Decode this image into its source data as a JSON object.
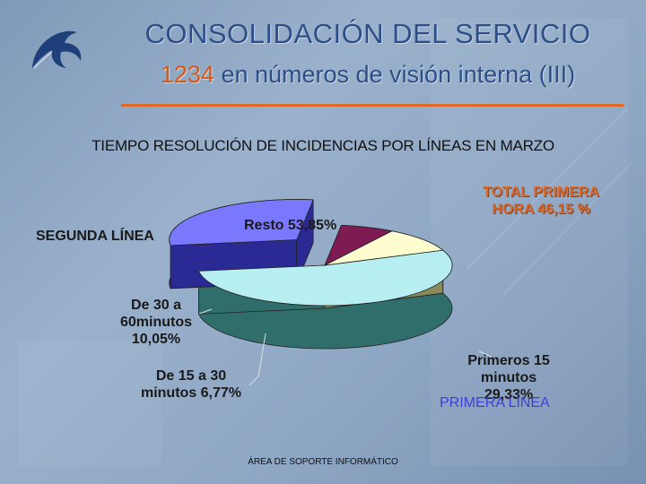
{
  "header": {
    "title": "CONSOLIDACIÓN DEL SERVICIO",
    "subtitle_number": "1234",
    "subtitle_text": " en números de visión interna (III)"
  },
  "chart_title": "TIEMPO RESOLUCIÓN DE INCIDENCIAS POR LÍNEAS EN MARZO",
  "chart_data": {
    "type": "pie",
    "title": "TIEMPO RESOLUCIÓN DE INCIDENCIAS POR LÍNEAS EN MARZO",
    "slices": [
      {
        "name": "Resto",
        "value": 53.85,
        "label": "Resto 53,85%",
        "color": "#b7eef2",
        "side": "#2f6e6a"
      },
      {
        "name": "Primeros 15 minutos",
        "value": 29.33,
        "label": "Primeros 15 minutos 29,33%",
        "color": "#7a78ff",
        "side": "#2b2a94",
        "exploded": true
      },
      {
        "name": "De 15 a 30 minutos",
        "value": 6.77,
        "label": "De 15 a 30 minutos 6,77%",
        "color": "#7d1b52",
        "side": "#3a0a26"
      },
      {
        "name": "De 30 a 60minutos",
        "value": 10.05,
        "label": "De 30 a 60minutos 10,05%",
        "color": "#fdfdd0",
        "side": "#8b8a5c"
      }
    ]
  },
  "labels": {
    "resto": "Resto 53,85%",
    "primeros": [
      "Primeros 15",
      "minutos 29,33%"
    ],
    "de15": [
      "De 15 a 30",
      "minutos 6,77%"
    ],
    "de30": [
      "De 30 a",
      "60minutos",
      "10,05%"
    ],
    "total_primera": [
      "TOTAL PRIMERA",
      "HORA 46,15 %"
    ],
    "segunda_linea": "SEGUNDA LÍNEA",
    "primera_linea": "PRIMERA LÍNEA"
  },
  "footer": "ÁREA DE SOPORTE INFORMÁTICO",
  "colors": {
    "title": "#2d4e86",
    "accent": "#e0682a",
    "primera_linea": "#3f3fd8"
  }
}
